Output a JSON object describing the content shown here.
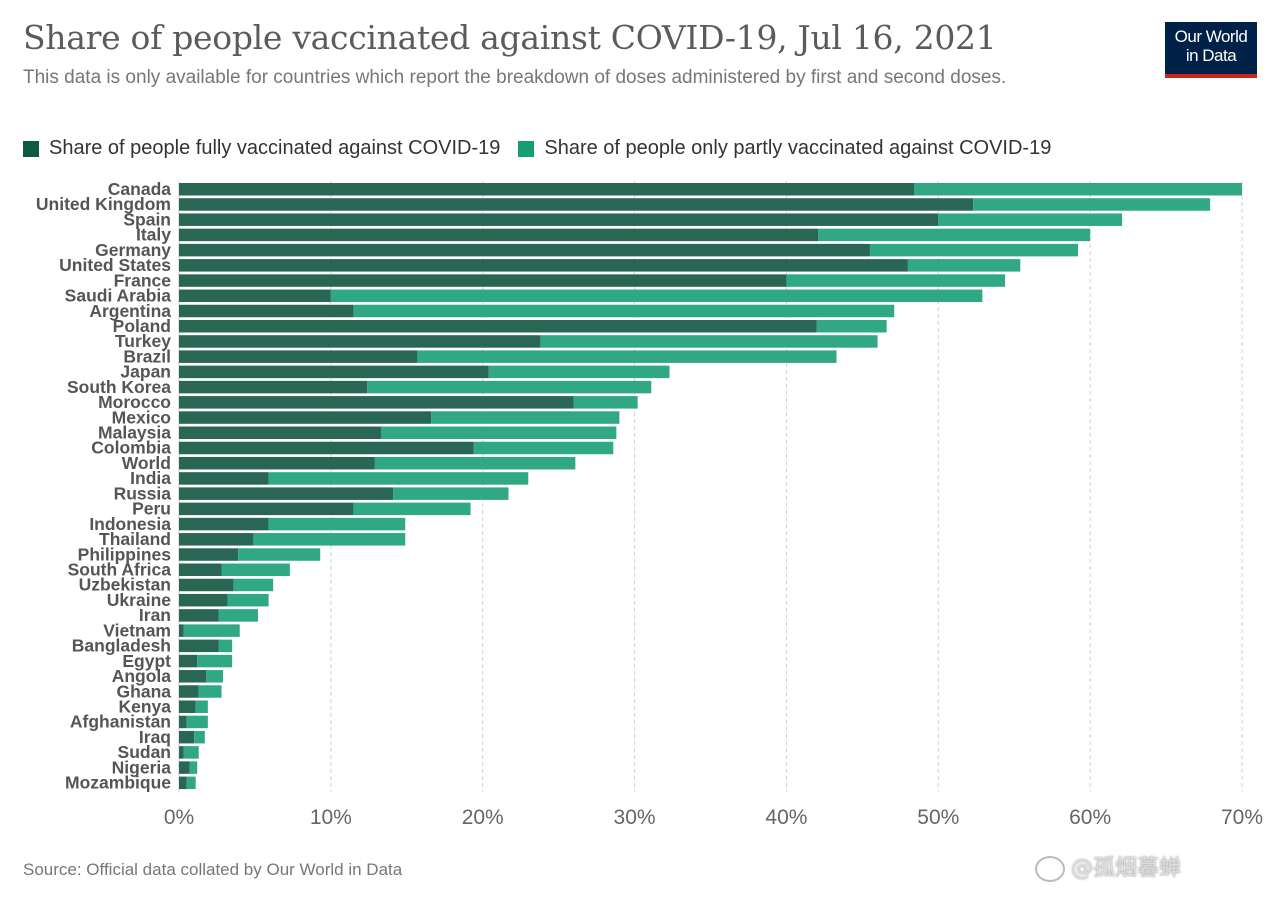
{
  "header": {
    "title": "Share of people vaccinated against COVID-19, Jul 16, 2021",
    "subtitle": "This data is only available for countries which report the breakdown of doses administered by first and second doses.",
    "logo_line1": "Our World",
    "logo_line2": "in Data"
  },
  "colors": {
    "fully": "#2a6654",
    "partly": "#30a883",
    "legend_fully": "#0f5a40",
    "legend_partly": "#169e72",
    "logo_bg": "#002147",
    "logo_accent": "#ce261e",
    "grid": "#d0d0d0"
  },
  "footer": {
    "source": "Source: Official data collated by Our World in Data",
    "watermark": "@孤烟暮蝉"
  },
  "chart_data": {
    "type": "bar",
    "orientation": "horizontal",
    "stacked": true,
    "title": "Share of people vaccinated against COVID-19, Jul 16, 2021",
    "xlabel": "",
    "ylabel": "",
    "xlim": [
      0,
      70
    ],
    "x_ticks": [
      "0%",
      "10%",
      "20%",
      "30%",
      "40%",
      "50%",
      "60%",
      "70%"
    ],
    "x_tick_values": [
      0,
      10,
      20,
      30,
      40,
      50,
      60,
      70
    ],
    "grid": "vertical dashed",
    "legend_position": "top-left",
    "categories": [
      "Canada",
      "United Kingdom",
      "Spain",
      "Italy",
      "Germany",
      "United States",
      "France",
      "Saudi Arabia",
      "Argentina",
      "Poland",
      "Turkey",
      "Brazil",
      "Japan",
      "South Korea",
      "Morocco",
      "Mexico",
      "Malaysia",
      "Colombia",
      "World",
      "India",
      "Russia",
      "Peru",
      "Indonesia",
      "Thailand",
      "Philippines",
      "South Africa",
      "Uzbekistan",
      "Ukraine",
      "Iran",
      "Vietnam",
      "Bangladesh",
      "Egypt",
      "Angola",
      "Ghana",
      "Kenya",
      "Afghanistan",
      "Iraq",
      "Sudan",
      "Nigeria",
      "Mozambique"
    ],
    "series": [
      {
        "name": "Share of people fully vaccinated against COVID-19",
        "values": [
          48.4,
          52.3,
          50.0,
          42.1,
          45.5,
          48.0,
          40.0,
          10.0,
          11.5,
          42.0,
          23.8,
          15.7,
          20.4,
          12.4,
          26.0,
          16.6,
          13.3,
          19.4,
          12.9,
          5.9,
          14.1,
          11.5,
          5.9,
          4.9,
          3.9,
          2.8,
          3.6,
          3.2,
          2.6,
          0.3,
          2.6,
          1.2,
          1.8,
          1.3,
          1.1,
          0.5,
          1.0,
          0.3,
          0.7,
          0.5
        ]
      },
      {
        "name": "Share of people only partly vaccinated against COVID-19",
        "values": [
          21.6,
          15.6,
          12.1,
          17.9,
          13.7,
          7.4,
          14.4,
          42.9,
          35.6,
          4.6,
          22.2,
          27.6,
          11.9,
          18.7,
          4.2,
          12.4,
          15.5,
          9.2,
          13.2,
          17.1,
          7.6,
          7.7,
          9.0,
          10.0,
          5.4,
          4.5,
          2.6,
          2.7,
          2.6,
          3.7,
          0.9,
          2.3,
          1.1,
          1.5,
          0.8,
          1.4,
          0.7,
          1.0,
          0.5,
          0.6
        ]
      }
    ]
  }
}
